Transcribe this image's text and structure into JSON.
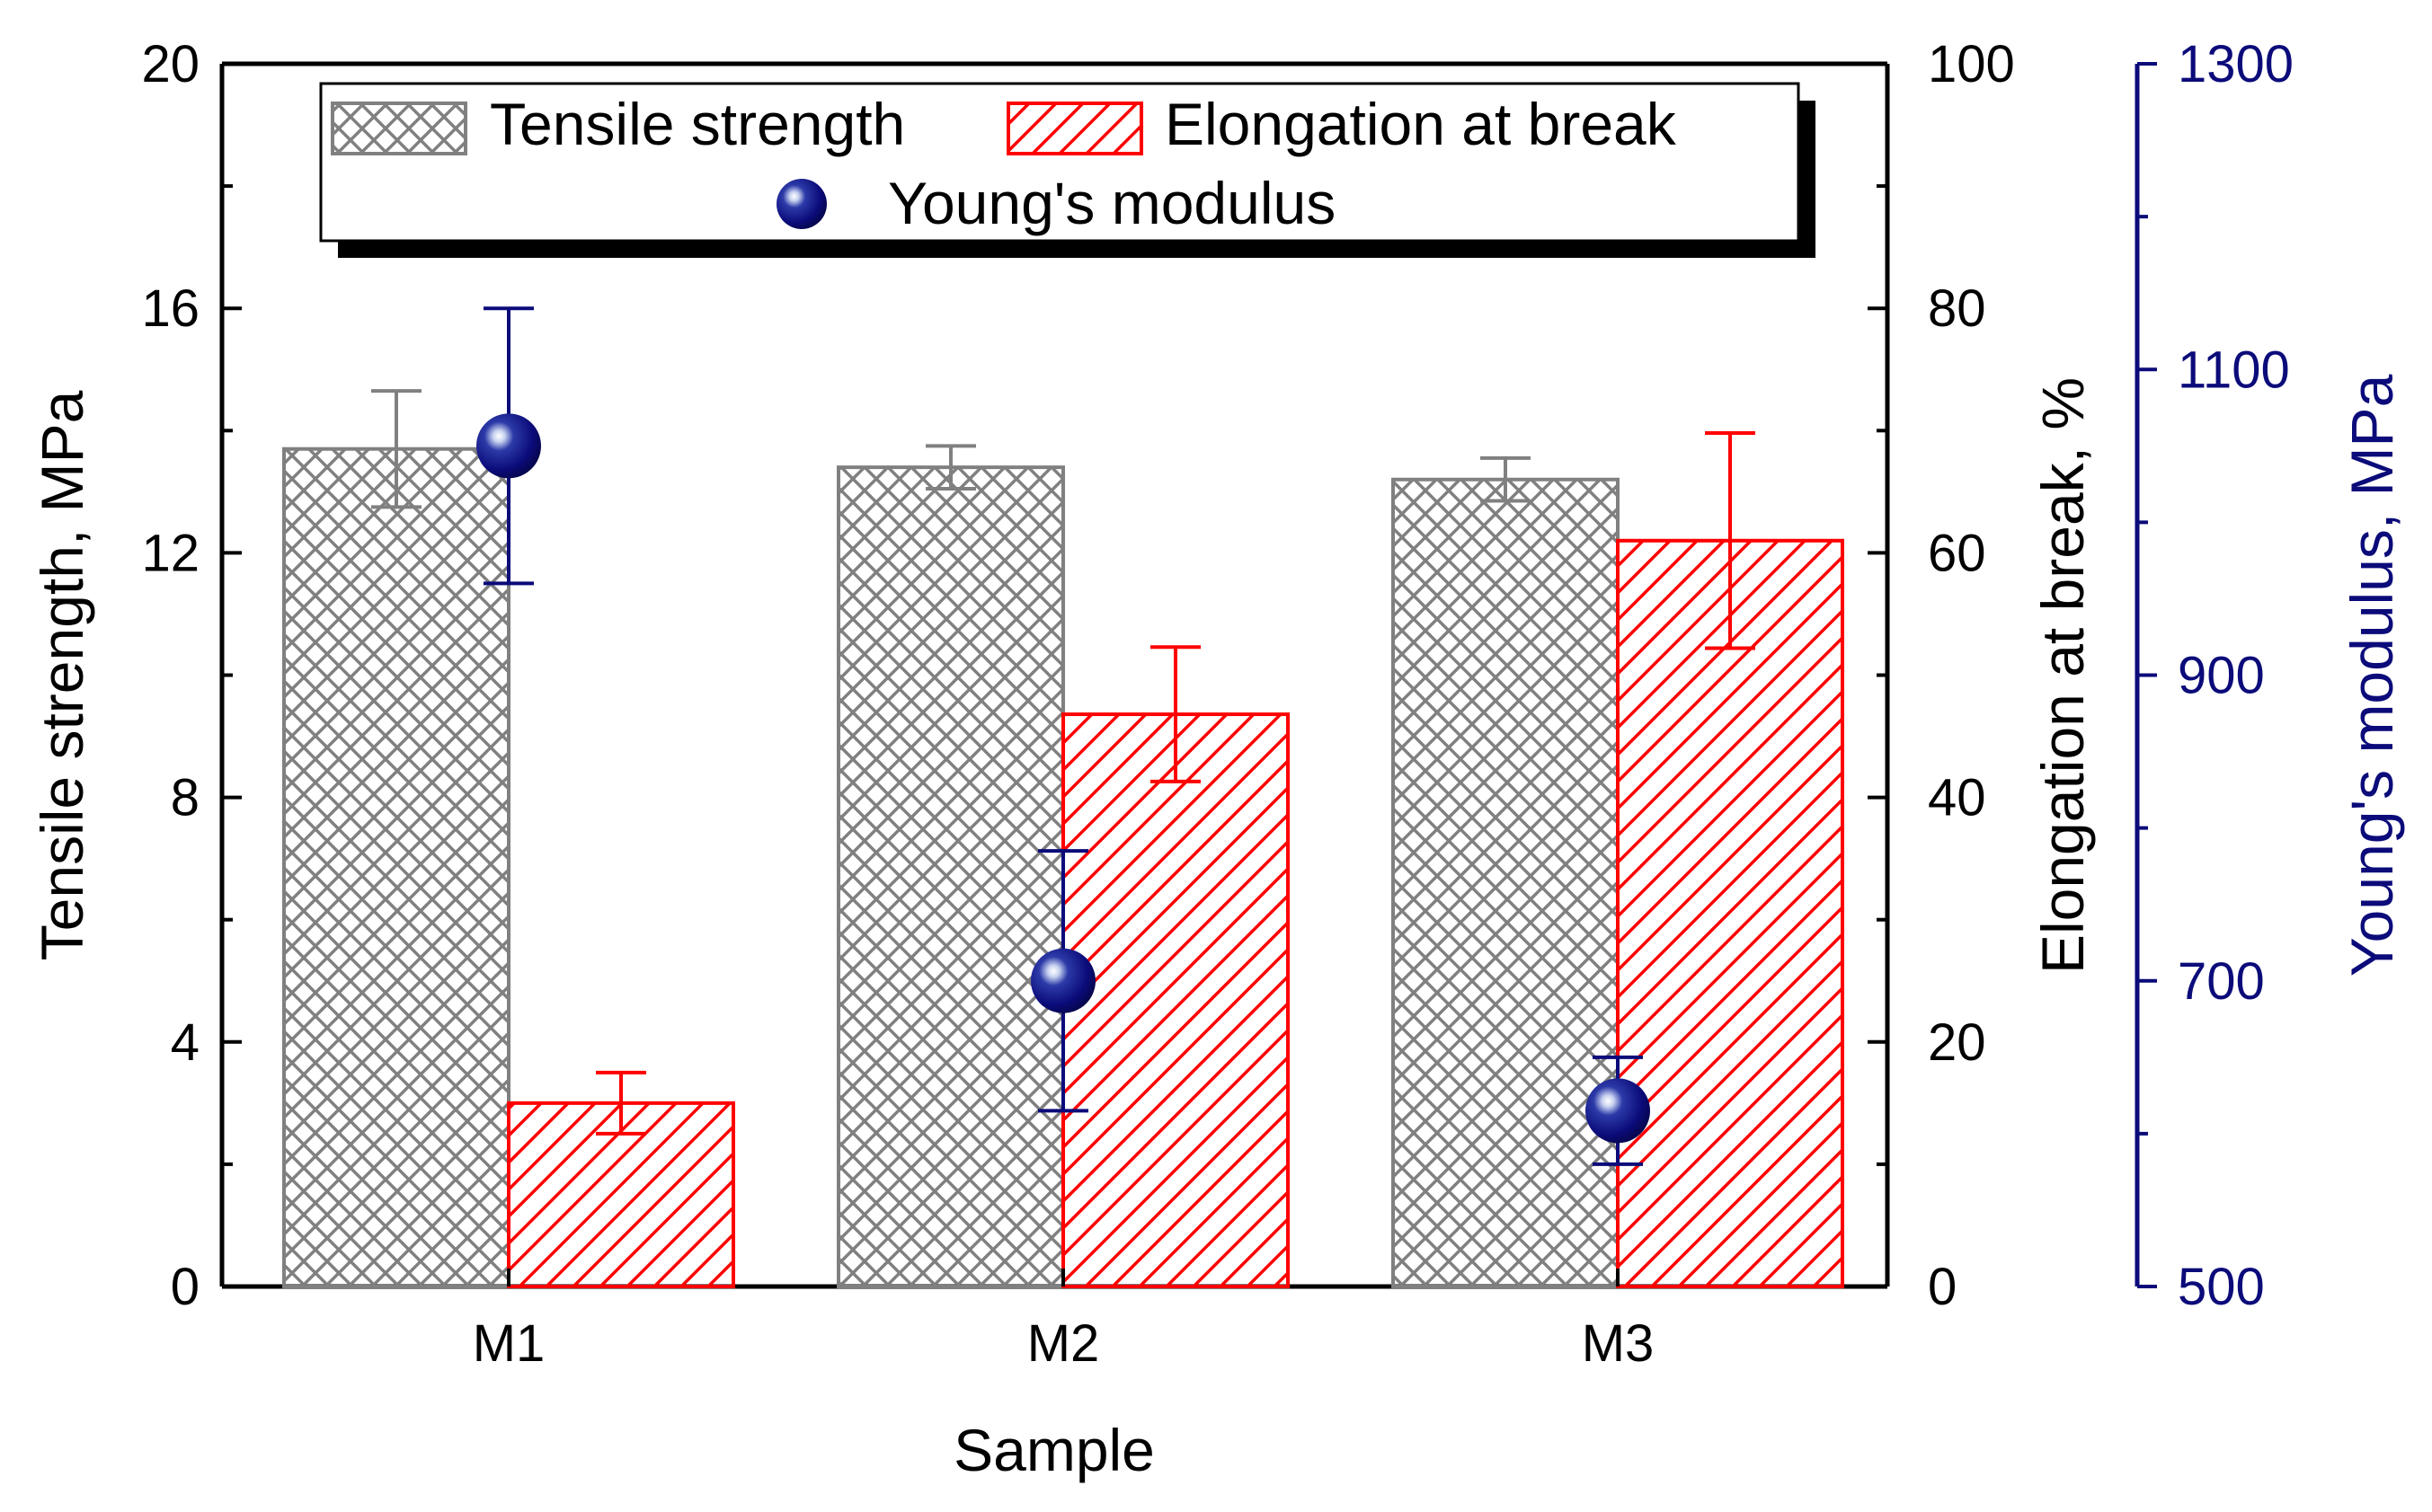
{
  "chart_data": {
    "type": "bar",
    "xlabel": "Sample",
    "categories": [
      "M1",
      "M2",
      "M3"
    ],
    "axes": {
      "left": {
        "label": "Tensile strength, MPa",
        "range": [
          0,
          20
        ],
        "ticks": [
          0,
          4,
          8,
          12,
          16,
          20
        ]
      },
      "right1": {
        "label": "Elongation at break, %",
        "range": [
          0,
          100
        ],
        "ticks": [
          0,
          20,
          40,
          60,
          80,
          100
        ]
      },
      "right2": {
        "label": "Young's modulus, MPa",
        "range": [
          500,
          1300
        ],
        "ticks": [
          500,
          700,
          900,
          1100,
          1300
        ],
        "color": "#0b0b7a"
      }
    },
    "series": [
      {
        "name": "Tensile strength",
        "type": "bar",
        "axis": "left",
        "color": "#808080",
        "pattern": "crosshatch",
        "values": [
          13.7,
          13.4,
          13.2
        ],
        "errors": [
          0.95,
          0.35,
          0.35
        ]
      },
      {
        "name": "Elongation at break",
        "type": "bar",
        "axis": "right1",
        "color": "#ff0000",
        "pattern": "diagonal",
        "values": [
          15,
          46.8,
          61
        ],
        "errors": [
          2.5,
          5.5,
          8.8
        ]
      },
      {
        "name": "Young's modulus",
        "type": "scatter",
        "axis": "right2",
        "color": "#0b0b7a",
        "values": [
          1050,
          700,
          615
        ],
        "errors": [
          90,
          85,
          35
        ]
      }
    ],
    "legend": {
      "position": "top-center",
      "entries": [
        "Tensile strength",
        "Elongation at break",
        "Young's modulus"
      ]
    }
  }
}
